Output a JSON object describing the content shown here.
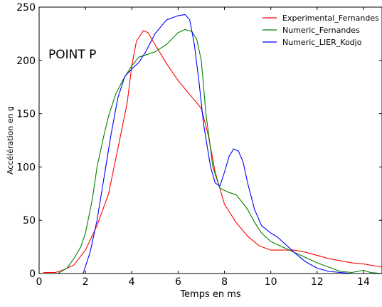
{
  "chart_data": {
    "type": "line",
    "title": "",
    "xlabel": "Temps en ms",
    "ylabel": "Accélération en g",
    "xlim": [
      0,
      14.8
    ],
    "ylim": [
      0,
      250
    ],
    "xticks": [
      0,
      2,
      4,
      6,
      8,
      10,
      12,
      14
    ],
    "yticks": [
      0,
      50,
      100,
      150,
      200,
      250
    ],
    "grid": false,
    "legend_position": "top-right",
    "annotation": "POINT P",
    "series": [
      {
        "name": "Experimental_Fernandes",
        "color": "#ff0000",
        "points": [
          [
            0.2,
            1
          ],
          [
            0.7,
            1
          ],
          [
            1.0,
            3
          ],
          [
            1.5,
            8
          ],
          [
            2.0,
            22
          ],
          [
            2.5,
            45
          ],
          [
            3.0,
            75
          ],
          [
            3.5,
            128
          ],
          [
            3.8,
            160
          ],
          [
            4.0,
            195
          ],
          [
            4.2,
            218
          ],
          [
            4.5,
            228
          ],
          [
            4.7,
            226
          ],
          [
            5.0,
            215
          ],
          [
            5.5,
            197
          ],
          [
            6.0,
            181
          ],
          [
            6.5,
            168
          ],
          [
            7.0,
            155
          ],
          [
            7.3,
            130
          ],
          [
            7.6,
            95
          ],
          [
            8.0,
            65
          ],
          [
            8.5,
            48
          ],
          [
            9.0,
            35
          ],
          [
            9.5,
            26
          ],
          [
            10.0,
            22
          ],
          [
            10.5,
            22
          ],
          [
            11.0,
            22
          ],
          [
            11.5,
            20
          ],
          [
            12.0,
            17
          ],
          [
            12.5,
            14
          ],
          [
            13.0,
            12
          ],
          [
            13.5,
            10
          ],
          [
            14.0,
            9
          ],
          [
            14.8,
            6
          ]
        ]
      },
      {
        "name": "Numeric_Fernandes",
        "color": "#008000",
        "points": [
          [
            0.2,
            0
          ],
          [
            0.8,
            0
          ],
          [
            1.2,
            5
          ],
          [
            1.5,
            14
          ],
          [
            1.8,
            25
          ],
          [
            2.0,
            38
          ],
          [
            2.3,
            70
          ],
          [
            2.5,
            100
          ],
          [
            2.8,
            130
          ],
          [
            3.0,
            148
          ],
          [
            3.3,
            168
          ],
          [
            3.6,
            181
          ],
          [
            4.0,
            195
          ],
          [
            4.3,
            203
          ],
          [
            5.0,
            208
          ],
          [
            5.5,
            215
          ],
          [
            6.0,
            226
          ],
          [
            6.3,
            229
          ],
          [
            6.6,
            227
          ],
          [
            6.8,
            220
          ],
          [
            7.0,
            200
          ],
          [
            7.2,
            150
          ],
          [
            7.5,
            100
          ],
          [
            7.8,
            80
          ],
          [
            8.2,
            76
          ],
          [
            8.5,
            74
          ],
          [
            8.8,
            66
          ],
          [
            9.0,
            60
          ],
          [
            9.3,
            48
          ],
          [
            9.6,
            38
          ],
          [
            10.0,
            30
          ],
          [
            10.5,
            25
          ],
          [
            11.0,
            20
          ],
          [
            11.5,
            15
          ],
          [
            12.0,
            10
          ],
          [
            12.5,
            6
          ],
          [
            13.0,
            2
          ],
          [
            13.5,
            1
          ],
          [
            14.0,
            3
          ],
          [
            14.3,
            1
          ],
          [
            14.8,
            0
          ]
        ]
      },
      {
        "name": "Numeric_LIER_Kodjo",
        "color": "#0000ff",
        "points": [
          [
            1.9,
            0
          ],
          [
            2.2,
            20
          ],
          [
            2.5,
            50
          ],
          [
            2.8,
            90
          ],
          [
            3.1,
            130
          ],
          [
            3.4,
            165
          ],
          [
            3.7,
            185
          ],
          [
            4.0,
            192
          ],
          [
            4.3,
            198
          ],
          [
            4.6,
            208
          ],
          [
            5.0,
            225
          ],
          [
            5.5,
            238
          ],
          [
            6.0,
            242
          ],
          [
            6.3,
            243
          ],
          [
            6.5,
            238
          ],
          [
            6.7,
            215
          ],
          [
            6.9,
            180
          ],
          [
            7.1,
            140
          ],
          [
            7.4,
            100
          ],
          [
            7.6,
            85
          ],
          [
            7.8,
            82
          ],
          [
            8.0,
            95
          ],
          [
            8.2,
            110
          ],
          [
            8.4,
            117
          ],
          [
            8.6,
            115
          ],
          [
            8.8,
            105
          ],
          [
            9.0,
            85
          ],
          [
            9.3,
            60
          ],
          [
            9.6,
            45
          ],
          [
            10.0,
            38
          ],
          [
            10.3,
            34
          ],
          [
            10.6,
            28
          ],
          [
            11.0,
            20
          ],
          [
            11.5,
            11
          ],
          [
            12.0,
            5
          ],
          [
            12.5,
            2
          ],
          [
            13.0,
            1
          ],
          [
            13.5,
            0
          ],
          [
            14.8,
            0
          ]
        ]
      }
    ]
  }
}
